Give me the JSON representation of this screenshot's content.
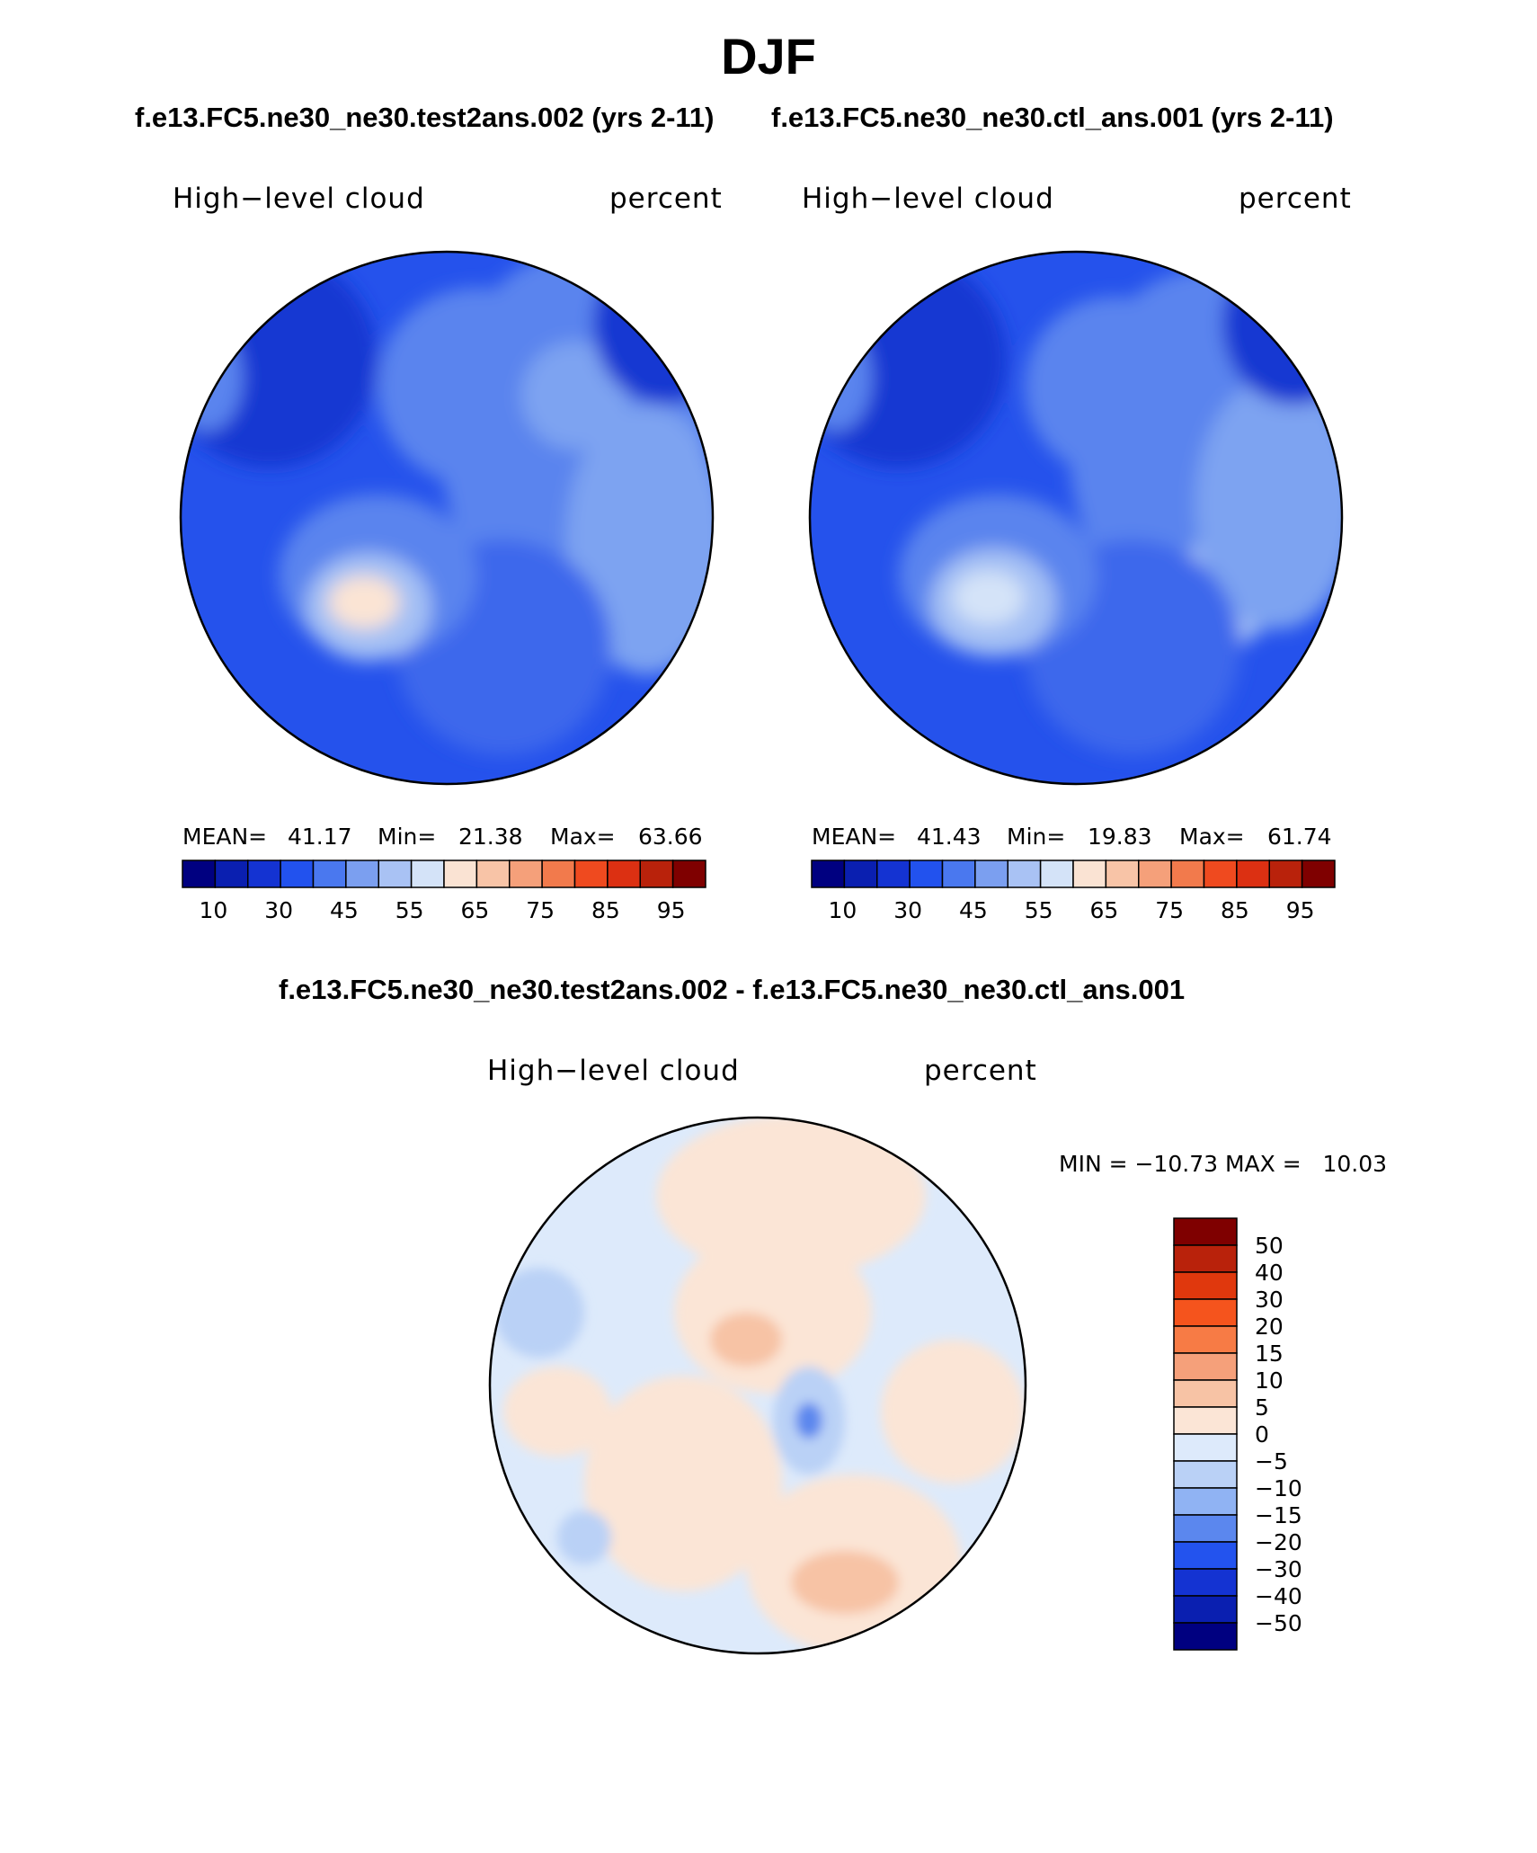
{
  "title": "DJF",
  "top_subtitle_left": "f.e13.FC5.ne30_ne30.test2ans.002 (yrs 2-11)",
  "top_subtitle_right": "f.e13.FC5.ne30_ne30.ctl_ans.001 (yrs 2-11)",
  "diff_subtitle": "f.e13.FC5.ne30_ne30.test2ans.002 - f.e13.FC5.ne30_ne30.ctl_ans.001",
  "panels": [
    {
      "variable": "High−level cloud",
      "units": "percent",
      "stats": {
        "mean_label": "MEAN=",
        "mean": "41.17",
        "min_label": "Min=",
        "min": "21.38",
        "max_label": "Max=",
        "max": "63.66"
      }
    },
    {
      "variable": "High−level cloud",
      "units": "percent",
      "stats": {
        "mean_label": "MEAN=",
        "mean": "41.43",
        "min_label": "Min=",
        "min": "19.83",
        "max_label": "Max=",
        "max": "61.74"
      }
    }
  ],
  "diff_panel": {
    "variable": "High−level cloud",
    "units": "percent",
    "minmax": "MIN = −10.73 MAX =   10.03"
  },
  "abs_colorbar": {
    "colors": [
      "#000080",
      "#0a1fb0",
      "#1433d2",
      "#2252ee",
      "#4a78ef",
      "#7b9ff0",
      "#a9c2f4",
      "#d4e3f8",
      "#fae3d3",
      "#f8c4a7",
      "#f5a07a",
      "#f27a4c",
      "#ef4a1f",
      "#dc3012",
      "#b9220b",
      "#7f0000"
    ],
    "tick_labels": [
      "10",
      "30",
      "45",
      "55",
      "65",
      "75",
      "85",
      "95"
    ]
  },
  "diff_colorbar": {
    "colors": [
      "#7f0000",
      "#b9220b",
      "#e0380d",
      "#f5541d",
      "#f77b45",
      "#f5a07a",
      "#f7c3a5",
      "#fbe5d6",
      "#ddeafb",
      "#bad1f6",
      "#90b3f3",
      "#5b87ee",
      "#2353ee",
      "#1433d2",
      "#0a1fb0",
      "#000080"
    ],
    "tick_labels": [
      "50",
      "40",
      "30",
      "20",
      "15",
      "10",
      "5",
      "0",
      "−5",
      "−10",
      "−15",
      "−20",
      "−30",
      "−40",
      "−50"
    ]
  },
  "chart_data": [
    {
      "type": "heatmap",
      "projection": "north polar stereographic",
      "season": "DJF",
      "case": "f.e13.FC5.ne30_ne30.test2ans.002 (yrs 2-11)",
      "title": "High−level cloud",
      "units": "percent",
      "mean": 41.17,
      "min": 21.38,
      "max": 63.66,
      "contour_levels": [
        10,
        15,
        20,
        25,
        30,
        35,
        40,
        45,
        50,
        55,
        60,
        65,
        70,
        75,
        80,
        85,
        90,
        95
      ]
    },
    {
      "type": "heatmap",
      "projection": "north polar stereographic",
      "season": "DJF",
      "case": "f.e13.FC5.ne30_ne30.ctl_ans.001 (yrs 2-11)",
      "title": "High−level cloud",
      "units": "percent",
      "mean": 41.43,
      "min": 19.83,
      "max": 61.74,
      "contour_levels": [
        10,
        15,
        20,
        25,
        30,
        35,
        40,
        45,
        50,
        55,
        60,
        65,
        70,
        75,
        80,
        85,
        90,
        95
      ]
    },
    {
      "type": "heatmap",
      "projection": "north polar stereographic",
      "season": "DJF",
      "case": "test2ans.002 - ctl_ans.001",
      "title": "High−level cloud",
      "units": "percent",
      "min": -10.73,
      "max": 10.03,
      "contour_levels": [
        -50,
        -40,
        -30,
        -20,
        -15,
        -10,
        -5,
        0,
        5,
        10,
        15,
        20,
        30,
        40,
        50
      ]
    }
  ]
}
